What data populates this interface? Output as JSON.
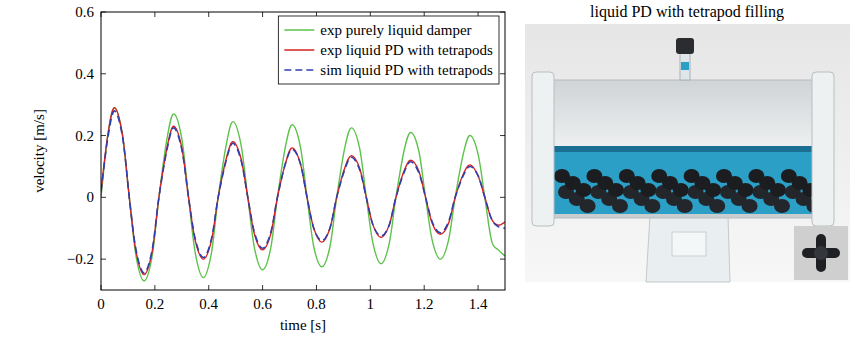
{
  "chart_data": {
    "type": "line",
    "x_label": "time [s]",
    "y_label": "velocity [m/s]",
    "xlim": [
      0,
      1.5
    ],
    "ylim": [
      -0.3,
      0.6
    ],
    "xticks": [
      0,
      0.2,
      0.4,
      0.6,
      0.8,
      1,
      1.2,
      1.4
    ],
    "yticks": [
      {
        "value": -0.2,
        "label": "−0.2"
      },
      0,
      0.2,
      0.4,
      0.6
    ],
    "grid": false,
    "legend": "top-right",
    "x": [
      0,
      0.025,
      0.05,
      0.08,
      0.105,
      0.13,
      0.16,
      0.19,
      0.215,
      0.245,
      0.27,
      0.3,
      0.325,
      0.35,
      0.38,
      0.41,
      0.435,
      0.465,
      0.49,
      0.52,
      0.545,
      0.57,
      0.6,
      0.63,
      0.655,
      0.685,
      0.71,
      0.74,
      0.765,
      0.79,
      0.82,
      0.85,
      0.875,
      0.905,
      0.93,
      0.96,
      0.985,
      1.01,
      1.04,
      1.07,
      1.095,
      1.125,
      1.15,
      1.18,
      1.205,
      1.23,
      1.26,
      1.29,
      1.315,
      1.345,
      1.37,
      1.4,
      1.425,
      1.45,
      1.475,
      1.5
    ],
    "series": [
      {
        "name": "exp purely liquid damper",
        "color": "#5cc24a",
        "line_style": "solid",
        "values": [
          0,
          0.2,
          0.29,
          0.2,
          0,
          -0.19,
          -0.27,
          -0.19,
          0,
          0.19,
          0.27,
          0.19,
          0,
          -0.18,
          -0.26,
          -0.18,
          0,
          0.17,
          0.245,
          0.17,
          0,
          -0.165,
          -0.235,
          -0.165,
          0,
          0.165,
          0.235,
          0.165,
          0,
          -0.16,
          -0.225,
          -0.16,
          0,
          0.16,
          0.225,
          0.16,
          0,
          -0.15,
          -0.215,
          -0.15,
          0,
          0.15,
          0.21,
          0.15,
          0,
          -0.14,
          -0.2,
          -0.14,
          0,
          0.14,
          0.2,
          0.14,
          0,
          -0.14,
          -0.17,
          -0.19
        ]
      },
      {
        "name": "exp liquid PD with tetrapods",
        "color": "#d42222",
        "line_style": "solid",
        "values": [
          0.02,
          0.2,
          0.29,
          0.2,
          0,
          -0.175,
          -0.25,
          -0.175,
          0,
          0.16,
          0.23,
          0.16,
          0,
          -0.14,
          -0.2,
          -0.14,
          0,
          0.125,
          0.18,
          0.125,
          0,
          -0.12,
          -0.17,
          -0.12,
          0,
          0.11,
          0.16,
          0.11,
          0,
          -0.1,
          -0.145,
          -0.1,
          0,
          0.095,
          0.135,
          0.095,
          0,
          -0.09,
          -0.13,
          -0.09,
          0,
          0.085,
          0.12,
          0.085,
          0,
          -0.085,
          -0.12,
          -0.085,
          0,
          0.075,
          0.105,
          0.07,
          0,
          -0.07,
          -0.09,
          -0.08
        ]
      },
      {
        "name": "sim liquid PD with tetrapods",
        "color": "#2f3fae",
        "line_style": "dashed",
        "values": [
          0.02,
          0.19,
          0.28,
          0.195,
          0,
          -0.17,
          -0.245,
          -0.17,
          0,
          0.155,
          0.225,
          0.155,
          0,
          -0.135,
          -0.195,
          -0.135,
          0,
          0.12,
          0.175,
          0.12,
          0,
          -0.115,
          -0.165,
          -0.115,
          0,
          0.11,
          0.155,
          0.11,
          0,
          -0.1,
          -0.14,
          -0.1,
          0,
          0.09,
          0.13,
          0.09,
          0,
          -0.09,
          -0.125,
          -0.09,
          0,
          0.08,
          0.115,
          0.08,
          0,
          -0.08,
          -0.115,
          -0.08,
          0,
          0.07,
          0.1,
          0.07,
          0,
          -0.07,
          -0.095,
          -0.1
        ]
      }
    ]
  },
  "photo": {
    "title": "liquid PD with tetrapod filling"
  }
}
